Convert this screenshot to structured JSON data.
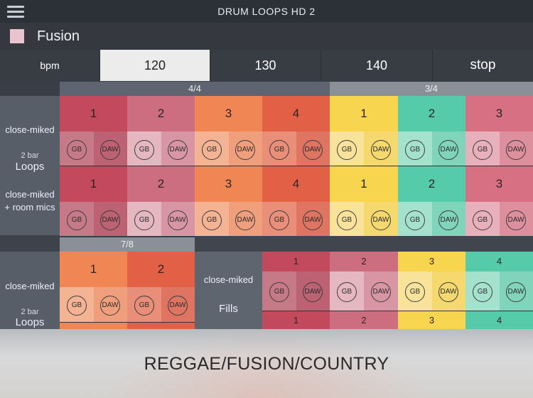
{
  "header": {
    "title": "DRUM LOOPS HD 2",
    "menu_icon": "hamburger-menu-icon"
  },
  "style": {
    "name": "Fusion",
    "swatch_color": "#e9c4ce"
  },
  "bpm_bar": {
    "label": "bpm",
    "options": [
      "120",
      "130",
      "140"
    ],
    "selected": "120",
    "stop_label": "stop"
  },
  "sections": {
    "top": {
      "meters": [
        "4/4",
        "3/4"
      ],
      "rows": [
        {
          "label": "close-miked",
          "pads": [
            "1",
            "2",
            "3",
            "4",
            "1",
            "2",
            "3"
          ]
        },
        {
          "label": "close-miked",
          "label2": "+ room mics",
          "pads": [
            "1",
            "2",
            "3",
            "4",
            "1",
            "2",
            "3"
          ]
        }
      ],
      "group_label_small": "2 bar",
      "group_label_big": "Loops"
    },
    "bottom_left": {
      "meter": "7/8",
      "row_label": "close-miked",
      "pads": [
        "1",
        "2"
      ],
      "group_label_small": "2 bar",
      "group_label_big": "Loops"
    },
    "fills": {
      "row_label": "close-miked",
      "group_label": "Fills",
      "pads_top": [
        "1",
        "2",
        "3",
        "4"
      ],
      "pads_bottom": [
        "1",
        "2",
        "3",
        "4"
      ]
    }
  },
  "buttons": {
    "gb": "GB",
    "daw": "DAW"
  },
  "colors": {
    "crimson": "#c04a5c",
    "rose": "#ca7082",
    "orange": "#ee8054",
    "red_orange": "#e05d45",
    "yellow": "#f5d24a",
    "teal": "#53c9a7",
    "pink": "#d77081"
  },
  "footer": {
    "genre": "REGGAE/FUSION/COUNTRY"
  }
}
